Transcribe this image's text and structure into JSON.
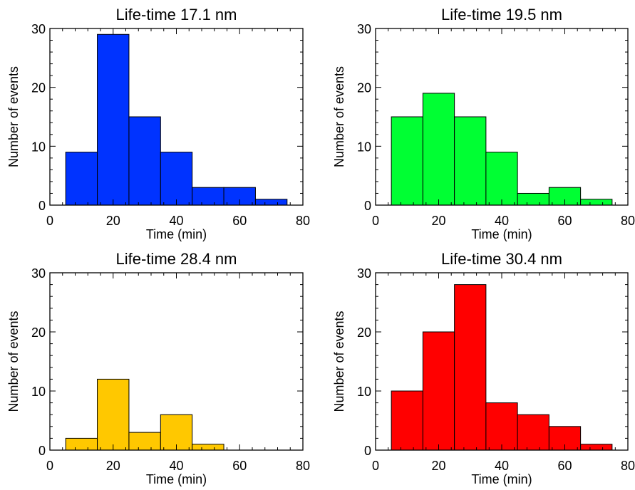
{
  "chart_data": [
    {
      "type": "bar",
      "title": "Life-time 17.1 nm",
      "xlabel": "Time (min)",
      "ylabel": "Number of events",
      "xlim": [
        0,
        80
      ],
      "ylim": [
        0,
        30
      ],
      "xticks": [
        0,
        20,
        40,
        60,
        80
      ],
      "yticks": [
        0,
        10,
        20,
        30
      ],
      "bin_edges": [
        5,
        15,
        25,
        35,
        45,
        55,
        65,
        75
      ],
      "values": [
        9,
        29,
        15,
        9,
        3,
        3,
        1
      ],
      "color": "#0033ff"
    },
    {
      "type": "bar",
      "title": "Life-time 19.5 nm",
      "xlabel": "Time (min)",
      "ylabel": "Number of events",
      "xlim": [
        0,
        80
      ],
      "ylim": [
        0,
        30
      ],
      "xticks": [
        0,
        20,
        40,
        60,
        80
      ],
      "yticks": [
        0,
        10,
        20,
        30
      ],
      "bin_edges": [
        5,
        15,
        25,
        35,
        45,
        55,
        65,
        75
      ],
      "values": [
        15,
        19,
        15,
        9,
        2,
        3,
        1
      ],
      "color": "#00ff33"
    },
    {
      "type": "bar",
      "title": "Life-time 28.4 nm",
      "xlabel": "Time (min)",
      "ylabel": "Number of events",
      "xlim": [
        0,
        80
      ],
      "ylim": [
        0,
        30
      ],
      "xticks": [
        0,
        20,
        40,
        60,
        80
      ],
      "yticks": [
        0,
        10,
        20,
        30
      ],
      "bin_edges": [
        5,
        15,
        25,
        35,
        45,
        55
      ],
      "values": [
        2,
        12,
        3,
        6,
        1
      ],
      "color": "#ffc800"
    },
    {
      "type": "bar",
      "title": "Life-time 30.4 nm",
      "xlabel": "Time (min)",
      "ylabel": "Number of events",
      "xlim": [
        0,
        80
      ],
      "ylim": [
        0,
        30
      ],
      "xticks": [
        0,
        20,
        40,
        60,
        80
      ],
      "yticks": [
        0,
        10,
        20,
        30
      ],
      "bin_edges": [
        5,
        15,
        25,
        35,
        45,
        55,
        65,
        75
      ],
      "values": [
        10,
        20,
        28,
        8,
        6,
        4,
        1
      ],
      "color": "#ff0000"
    }
  ]
}
